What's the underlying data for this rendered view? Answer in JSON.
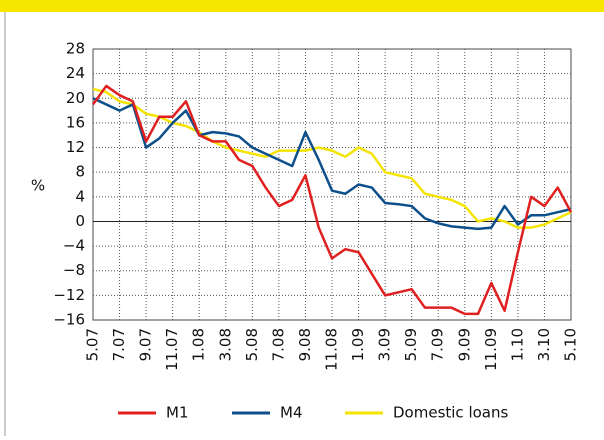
{
  "chart_data": {
    "type": "line",
    "y_label": "%",
    "categories": [
      "5.07",
      null,
      "7.07",
      null,
      "9.07",
      null,
      "11.07",
      null,
      "1.08",
      null,
      "3.08",
      null,
      "5.08",
      null,
      "7.08",
      null,
      "9.08",
      null,
      "11.08",
      null,
      "1.09",
      null,
      "3.09",
      null,
      "5.09",
      null,
      "7.09",
      null,
      "9.09",
      null,
      "11.09",
      null,
      "1.10",
      null,
      "3.10",
      null,
      "5.10"
    ],
    "series": [
      {
        "name": "M1",
        "color": "#e02020",
        "values": [
          19,
          22,
          20.5,
          19.5,
          13,
          17,
          17,
          19.5,
          14,
          13,
          13,
          10,
          9,
          5.5,
          2.5,
          3.5,
          7.5,
          -1,
          -6,
          -4.5,
          -5,
          -8.5,
          -12,
          -11.5,
          -11,
          -14,
          -14,
          -14,
          -15,
          -15,
          -10,
          -14.5,
          -5,
          4,
          2.5,
          5.5,
          1.5
        ]
      },
      {
        "name": "M4",
        "color": "#0d4f8b",
        "values": [
          20,
          19,
          18,
          19,
          12,
          13.5,
          16,
          18,
          14,
          14.5,
          14.3,
          13.8,
          12,
          11,
          10,
          9,
          14.5,
          10,
          5,
          4.5,
          6,
          5.5,
          3,
          2.8,
          2.5,
          0.5,
          -0.3,
          -0.8,
          -1,
          -1.2,
          -1,
          2.5,
          -0.5,
          1,
          1,
          1.5,
          2
        ]
      },
      {
        "name": "Domestic loans",
        "color": "#f5e400",
        "values": [
          21.5,
          21,
          19.5,
          19,
          17.5,
          17,
          16,
          15.5,
          14.5,
          13,
          12,
          11.5,
          11,
          10.5,
          11.5,
          11.5,
          11.5,
          12,
          11.5,
          10.5,
          12,
          11,
          8,
          7.5,
          7,
          4.5,
          4,
          3.5,
          2.5,
          0,
          0.5,
          0,
          -1,
          -1,
          -0.5,
          0.5,
          1.5
        ]
      }
    ],
    "ylim": [
      -16,
      28
    ],
    "yticks": [
      {
        "value": -16,
        "label": "−16"
      },
      {
        "value": -12,
        "label": "−12"
      },
      {
        "value": -8,
        "label": "−8"
      },
      {
        "value": -4,
        "label": "−4"
      },
      0,
      4,
      8,
      12,
      16,
      20,
      24,
      28
    ],
    "grid": true
  }
}
